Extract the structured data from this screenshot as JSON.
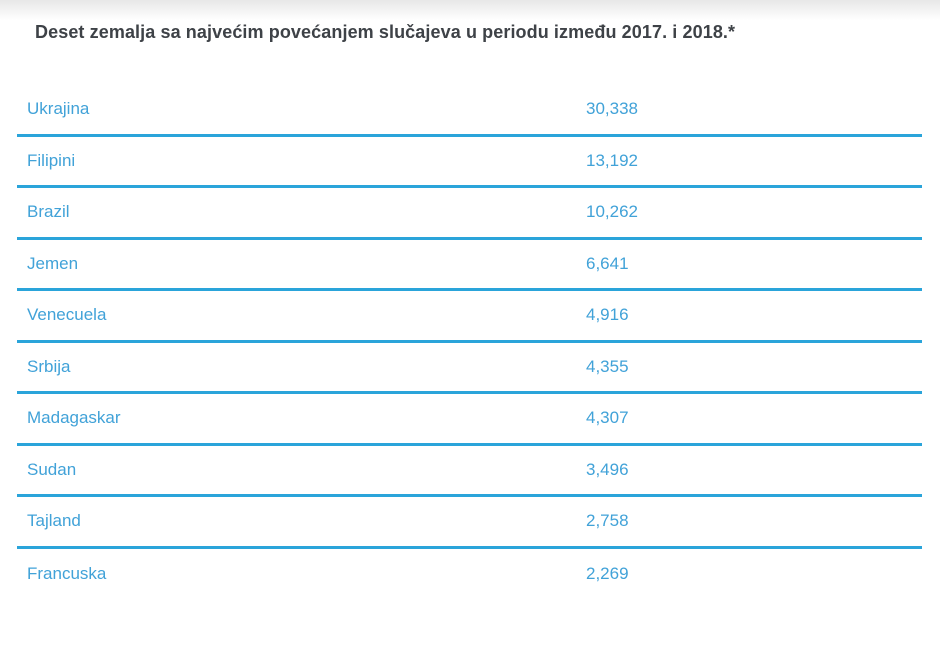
{
  "page": {
    "title": "Deset zemalja sa najvećim povećanjem slučajeva u periodu između 2017. i 2018.*"
  },
  "colors": {
    "accent_text": "#41a2d8",
    "divider": "#2aa4da",
    "title_text": "#3e4247",
    "top_fade": "#e7e7e7",
    "background": "#ffffff"
  },
  "chart_data": {
    "type": "table",
    "title": "Deset zemalja sa najvećim povećanjem slučajeva u periodu između 2017. i 2018.*",
    "categories": [
      "Ukrajina",
      "Filipini",
      "Brazil",
      "Jemen",
      "Venecuela",
      "Srbija",
      "Madagaskar",
      "Sudan",
      "Tajland",
      "Francuska"
    ],
    "values": [
      30338,
      13192,
      10262,
      6641,
      4916,
      4355,
      4307,
      3496,
      2758,
      2269
    ],
    "rows": [
      {
        "country": "Ukrajina",
        "value": "30,338"
      },
      {
        "country": "Filipini",
        "value": "13,192"
      },
      {
        "country": "Brazil",
        "value": "10,262"
      },
      {
        "country": "Jemen",
        "value": "6,641"
      },
      {
        "country": "Venecuela",
        "value": "4,916"
      },
      {
        "country": "Srbija",
        "value": "4,355"
      },
      {
        "country": "Madagaskar",
        "value": "4,307"
      },
      {
        "country": "Sudan",
        "value": "3,496"
      },
      {
        "country": "Tajland",
        "value": "2,758"
      },
      {
        "country": "Francuska",
        "value": "2,269"
      }
    ],
    "layout": {
      "legend": "none",
      "grid": "horizontal-dividers-only",
      "value_alignment": "left"
    }
  }
}
